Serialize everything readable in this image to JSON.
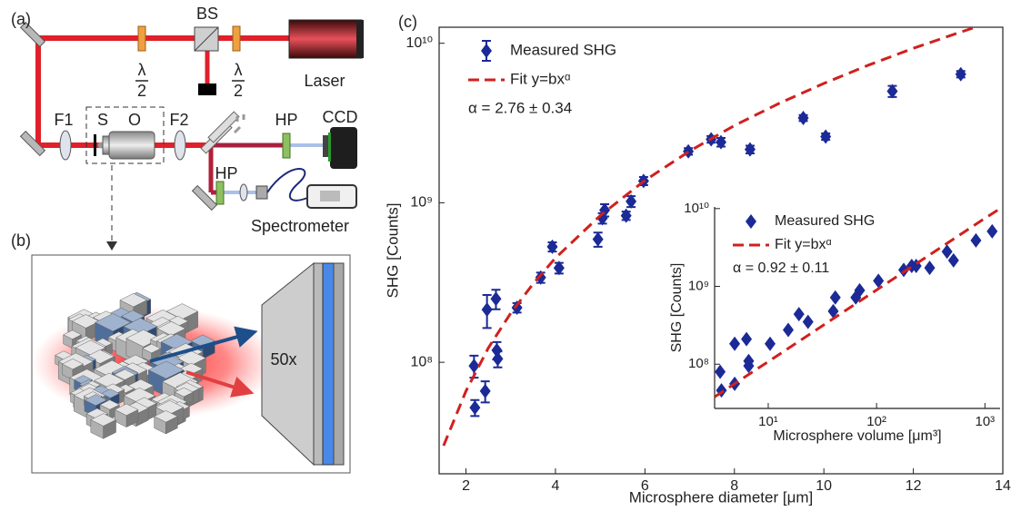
{
  "diagram": {
    "labels": [
      "(a)",
      "BS",
      "λ",
      "2",
      "λ",
      "2",
      "Laser",
      "F1",
      "S",
      "O",
      "F2",
      "HP",
      "CCD",
      "HP",
      "Spectrometer",
      "(b)",
      "50x"
    ]
  },
  "chart_data": [
    {
      "type": "scatter",
      "panel_label": "(c)",
      "xlabel": "Microsphere diameter [μm]",
      "ylabel": "SHG [Counts]",
      "xlim": [
        1.4,
        14
      ],
      "ylim": [
        20000000.0,
        12600000000.0
      ],
      "yscale": "log",
      "xticks": [
        2,
        4,
        6,
        8,
        10,
        12,
        14
      ],
      "yticks": [
        {
          "value": 100000000.0,
          "label": "10⁸"
        },
        {
          "value": 1000000000.0,
          "label": "10⁹"
        },
        {
          "value": 10000000000.0,
          "label": "10¹⁰"
        }
      ],
      "legend": "upper left",
      "annotation": "α = 2.76 ± 0.34",
      "series": [
        {
          "name": "Measured SHG",
          "color": "#1b2a96",
          "marker": "diamond",
          "x": [
            2.18,
            2.2,
            2.43,
            2.47,
            2.67,
            2.69,
            2.71,
            3.14,
            3.67,
            3.93,
            4.08,
            4.95,
            5.05,
            5.1,
            5.58,
            5.69,
            5.97,
            6.97,
            7.48,
            7.7,
            8.35,
            9.54,
            10.04,
            11.53,
            13.06
          ],
          "values": [
            95000000.0,
            52000000.0,
            66000000.0,
            214000000.0,
            250000000.0,
            119000000.0,
            105000000.0,
            220000000.0,
            340000000.0,
            530000000.0,
            390000000.0,
            590000000.0,
            800000000.0,
            900000000.0,
            830000000.0,
            1020000000.0,
            1370000000.0,
            2100000000.0,
            2500000000.0,
            2400000000.0,
            2160000000.0,
            3400000000.0,
            2600000000.0,
            5000000000.0,
            6400000000.0
          ],
          "errors": [
            15000000.0,
            6000000.0,
            10000000.0,
            50000000.0,
            35000000.0,
            15000000.0,
            12000000.0,
            15000000.0,
            25000000.0,
            35000000.0,
            30000000.0,
            60000000.0,
            60000000.0,
            80000000.0,
            50000000.0,
            80000000.0,
            80000000.0,
            100000000.0,
            120000000.0,
            150000000.0,
            120000000.0,
            150000000.0,
            120000000.0,
            400000000.0,
            300000000.0
          ]
        },
        {
          "name": "Fit y=bxᵅ",
          "color": "#d0201e",
          "style": "dashed",
          "x": [
            1.5,
            2,
            2.5,
            3,
            3.5,
            4,
            5,
            6,
            7,
            8,
            9,
            10,
            11,
            12,
            13,
            13.5
          ],
          "values": [
            30000000.0,
            66000000.0,
            123000000.0,
            203000000.0,
            310000000.0,
            450000000.0,
            830000000.0,
            1380000000.0,
            2110000000.0,
            3050000000.0,
            4200000000.0,
            5600000000.0,
            7300000000.0,
            9300000000.0,
            11600000000.0,
            12900000000.0
          ]
        }
      ]
    },
    {
      "type": "scatter",
      "xlabel": "Microsphere volume [μm³]",
      "ylabel": "SHG [Counts]",
      "xlim": [
        3.2,
        1380
      ],
      "ylim": [
        27000000.0,
        10500000000.0
      ],
      "xscale": "log",
      "yscale": "log",
      "xticks": [
        {
          "value": 10,
          "label": "10¹"
        },
        {
          "value": 100,
          "label": "10²"
        },
        {
          "value": 1000,
          "label": "10³"
        }
      ],
      "yticks": [
        {
          "value": 100000000.0,
          "label": "10⁸"
        },
        {
          "value": 1000000000.0,
          "label": "10⁹"
        },
        {
          "value": 10000000000.0,
          "label": "10¹⁰"
        }
      ],
      "legend": "upper left",
      "annotation": "α = 0.92 ± 0.11",
      "series": [
        {
          "name": "Measured SHG",
          "color": "#1b2a96",
          "marker": "diamond",
          "x": [
            3.6,
            3.7,
            4.9,
            4.9,
            6.3,
            6.6,
            6.6,
            10.4,
            15.3,
            19.2,
            23.3,
            39.8,
            41.6,
            64.3,
            69.8,
            104,
            178,
            211,
            232,
            309,
            447,
            513,
            826,
            1166
          ],
          "values": [
            80000000.0,
            46000000.0,
            183000000.0,
            56000000.0,
            210000000.0,
            110000000.0,
            95000000.0,
            183000000.0,
            276000000.0,
            440000000.0,
            350000000.0,
            480000000.0,
            720000000.0,
            720000000.0,
            890000000.0,
            1180000000.0,
            1630000000.0,
            1830000000.0,
            1830000000.0,
            1730000000.0,
            2800000000.0,
            2160000000.0,
            3900000000.0,
            5100000000.0
          ]
        },
        {
          "name": "Fit y=bxᵅ",
          "color": "#d0201e",
          "style": "dashed",
          "x": [
            3.2,
            10,
            100,
            1000,
            1380
          ],
          "values": [
            38000000.0,
            108000000.0,
            900000000.0,
            7500000000.0,
            10000000000.0
          ]
        }
      ]
    }
  ]
}
